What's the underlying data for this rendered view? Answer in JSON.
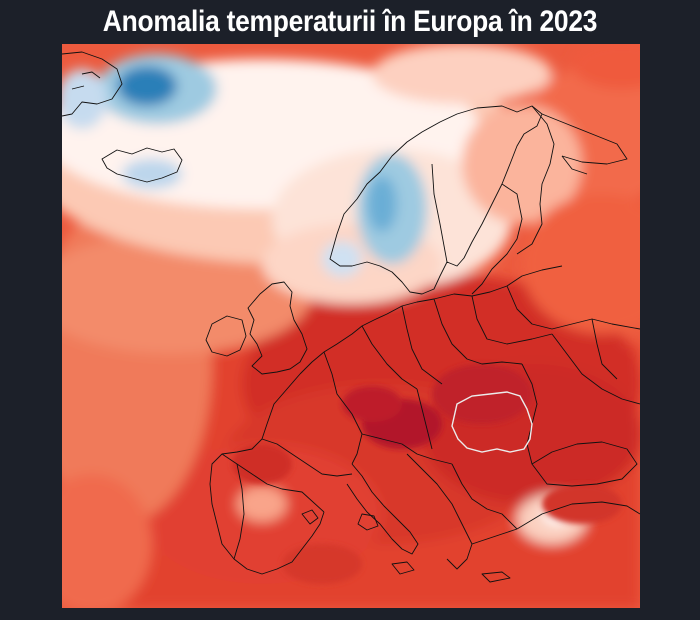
{
  "page": {
    "title": "Anomalia temperaturii în Europa în 2023"
  },
  "map": {
    "subject": "temperature-anomaly-europe-2023",
    "colors": {
      "background": "#1c2029",
      "deep_red": "#b2182b",
      "red": "#d6372c",
      "mid_red": "#ef5a3c",
      "light_red": "#fb8a6a",
      "salmon": "#fcbba1",
      "pale": "#fee5d9",
      "white": "#ffffff",
      "light_blue": "#c6dbef",
      "blue": "#6baed6",
      "deep_blue": "#2c7fb8",
      "borders": "#111111",
      "highlight_border": "#e8e8e8"
    },
    "highlighted_country": "Romania"
  }
}
